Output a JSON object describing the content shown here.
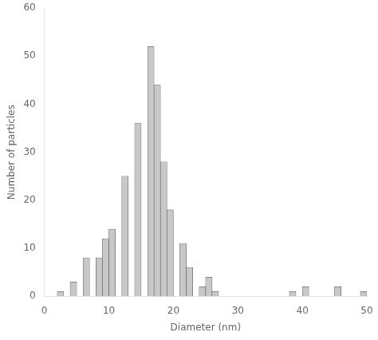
{
  "chart_data": {
    "type": "bar",
    "x": [
      2,
      4,
      6,
      7,
      8,
      9,
      10,
      11,
      12,
      13,
      14,
      15,
      16,
      17,
      18,
      19,
      20,
      21,
      22,
      23,
      24,
      25,
      26,
      27,
      28,
      29,
      38,
      40,
      45,
      49
    ],
    "values": [
      1,
      3,
      8,
      0,
      8,
      12,
      14,
      0,
      25,
      0,
      36,
      0,
      52,
      44,
      28,
      18,
      0,
      11,
      6,
      0,
      2,
      4,
      1,
      0,
      0,
      0,
      1,
      2,
      2,
      1
    ],
    "color": "#c8c8c8",
    "xlabel": "Diameter (nm)",
    "ylabel": "Number of particles",
    "xlim": [
      0,
      50
    ],
    "ylim": [
      0,
      60
    ],
    "xticks": [
      0,
      10,
      20,
      30,
      40,
      50
    ],
    "yticks": [
      0,
      10,
      20,
      30,
      40,
      50,
      60
    ],
    "grid": false
  }
}
